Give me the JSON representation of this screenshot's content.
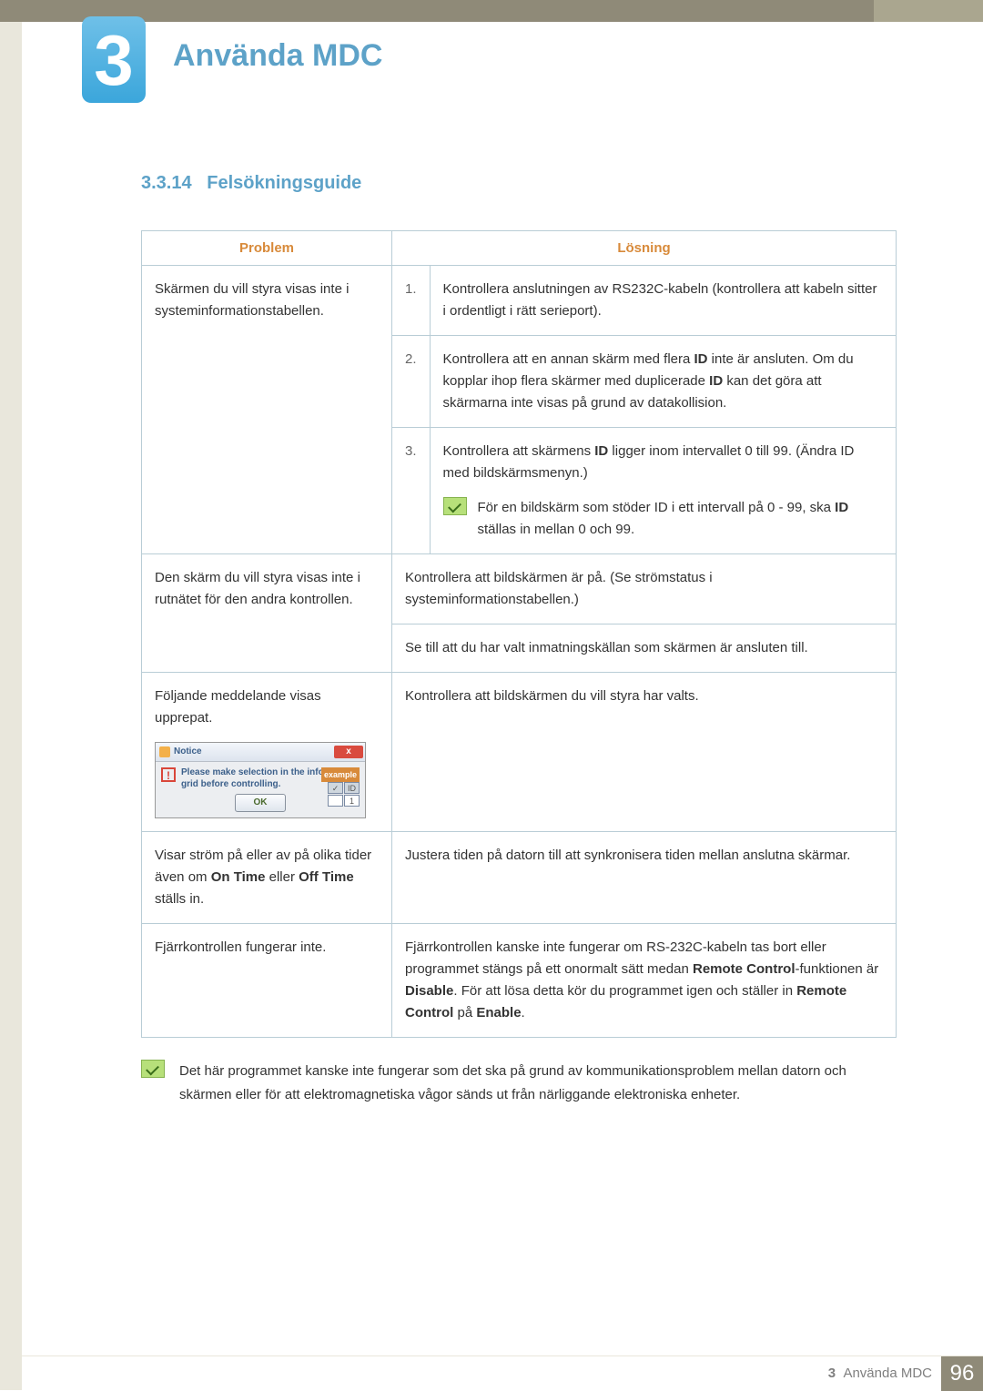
{
  "chapter": {
    "number": "3",
    "title": "Använda MDC"
  },
  "section": {
    "number": "3.3.14",
    "title": "Felsökningsguide"
  },
  "table": {
    "headers": {
      "problem": "Problem",
      "solution": "Lösning"
    },
    "row1": {
      "problem": "Skärmen du vill styra visas inte i systeminformationstabellen.",
      "s1_num": "1.",
      "s1": "Kontrollera anslutningen av RS232C-kabeln (kontrollera att kabeln sitter i ordentligt i rätt serieport).",
      "s2_num": "2.",
      "s2_a": "Kontrollera att en annan skärm med flera ",
      "s2_b": "ID",
      "s2_c": " inte är ansluten. Om du kopplar ihop flera skärmer med duplicerade ",
      "s2_d": "ID",
      "s2_e": " kan det göra att skärmarna inte visas på grund av datakollision.",
      "s3_num": "3.",
      "s3_a": "Kontrollera att skärmens ",
      "s3_b": "ID",
      "s3_c": " ligger inom intervallet 0 till 99. (Ändra ID med bildskärmsmenyn.)",
      "s3_note_a": "För en bildskärm som stöder ID i ett intervall på 0 - 99, ska ",
      "s3_note_b": "ID",
      "s3_note_c": " ställas in mellan 0 och 99."
    },
    "row2": {
      "problem": "Den skärm du vill styra visas inte i rutnätet för den andra kontrollen.",
      "s1": "Kontrollera att bildskärmen är på. (Se strömstatus i systeminformationstabellen.)",
      "s2": "Se till att du har valt inmatningskällan som skärmen är ansluten till."
    },
    "row3": {
      "problem": "Följande meddelande visas upprepat.",
      "solution": "Kontrollera att bildskärmen du vill styra har valts.",
      "dialog": {
        "title": "Notice",
        "close": "x",
        "msg": "Please make selection in the information grid before controlling.",
        "example": "example",
        "ok": "OK",
        "cell_b": "ID",
        "cell_c": "✓",
        "cell_d": "1"
      }
    },
    "row4": {
      "problem_a": "Visar ström på eller av på olika tider även om ",
      "problem_b": "On Time",
      "problem_c": " eller ",
      "problem_d": "Off Time",
      "problem_e": " ställs in.",
      "solution": "Justera tiden på datorn till att synkronisera tiden mellan anslutna skärmar."
    },
    "row5": {
      "problem": "Fjärrkontrollen fungerar inte.",
      "sol_a": "Fjärrkontrollen kanske inte fungerar om RS-232C-kabeln tas bort eller programmet stängs på ett onormalt sätt medan ",
      "sol_b": "Remote Control",
      "sol_c": "-funktionen är ",
      "sol_d": "Disable",
      "sol_e": ". För att lösa detta kör du programmet igen och ställer in ",
      "sol_f": "Remote Control",
      "sol_g": " på ",
      "sol_h": "Enable",
      "sol_i": "."
    }
  },
  "bottom_note": "Det här programmet kanske inte fungerar som det ska på grund av kommunikationsproblem mellan datorn och skärmen eller för att elektromagnetiska vågor sänds ut från närliggande elektroniska enheter.",
  "footer": {
    "chapter_ref_num": "3",
    "chapter_ref_title": "Använda MDC",
    "page": "96"
  }
}
